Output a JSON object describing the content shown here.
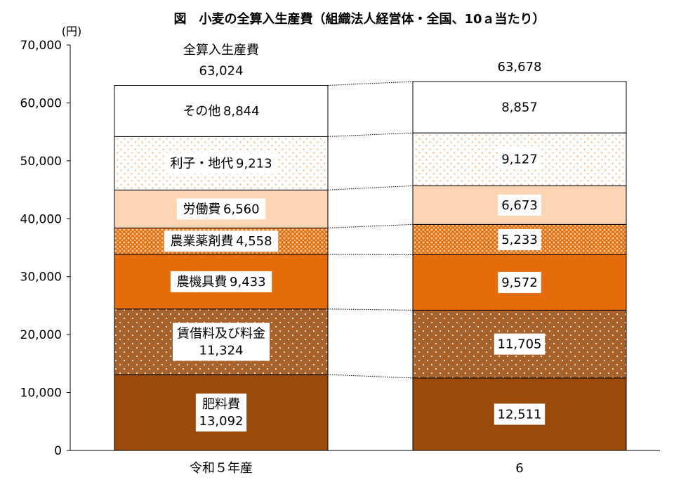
{
  "chart_data": {
    "type": "bar",
    "stacked": true,
    "title": "図　小麦の全算入生産費（組織法人経営体・全国、10ａ当たり）",
    "unit_label": "(円)",
    "ylim": [
      0,
      70000
    ],
    "yticks": [
      0,
      10000,
      20000,
      30000,
      40000,
      50000,
      60000,
      70000
    ],
    "ytick_labels": [
      "0",
      "10,000",
      "20,000",
      "30,000",
      "40,000",
      "50,000",
      "60,000",
      "70,000"
    ],
    "categories": [
      "令和５年産",
      "6"
    ],
    "total_caption": "全算入生産費",
    "totals": [
      63024,
      63678
    ],
    "total_labels": [
      "63,024",
      "63,678"
    ],
    "series": [
      {
        "name": "肥料費",
        "values": [
          13092,
          12511
        ],
        "value_labels": [
          "13,092",
          "12,511"
        ],
        "color": "#9a4a0b",
        "pattern": "solid"
      },
      {
        "name": "賃借料及び料金",
        "values": [
          11324,
          11705
        ],
        "value_labels": [
          "11,324",
          "11,705"
        ],
        "color": "#a8622b",
        "pattern": "dots"
      },
      {
        "name": "農機具費",
        "values": [
          9433,
          9572
        ],
        "value_labels": [
          "9,433",
          "9,572"
        ],
        "color": "#e46c0a",
        "pattern": "solid"
      },
      {
        "name": "農業薬剤費",
        "values": [
          4558,
          5233
        ],
        "value_labels": [
          "4,558",
          "5,233"
        ],
        "color": "#f08a3a",
        "pattern": "diamond"
      },
      {
        "name": "労働費",
        "values": [
          6560,
          6673
        ],
        "value_labels": [
          "6,560",
          "6,673"
        ],
        "color": "#fcd5b4",
        "pattern": "solid"
      },
      {
        "name": "利子・地代",
        "values": [
          9213,
          9127
        ],
        "value_labels": [
          "9,213",
          "9,127"
        ],
        "color": "#fbe3cc",
        "pattern": "sparse-dots"
      },
      {
        "name": "その他",
        "values": [
          8844,
          8857
        ],
        "value_labels": [
          "8,844",
          "8,857"
        ],
        "color": "#ffffff",
        "pattern": "solid"
      }
    ],
    "legend": "none",
    "grid": false
  }
}
